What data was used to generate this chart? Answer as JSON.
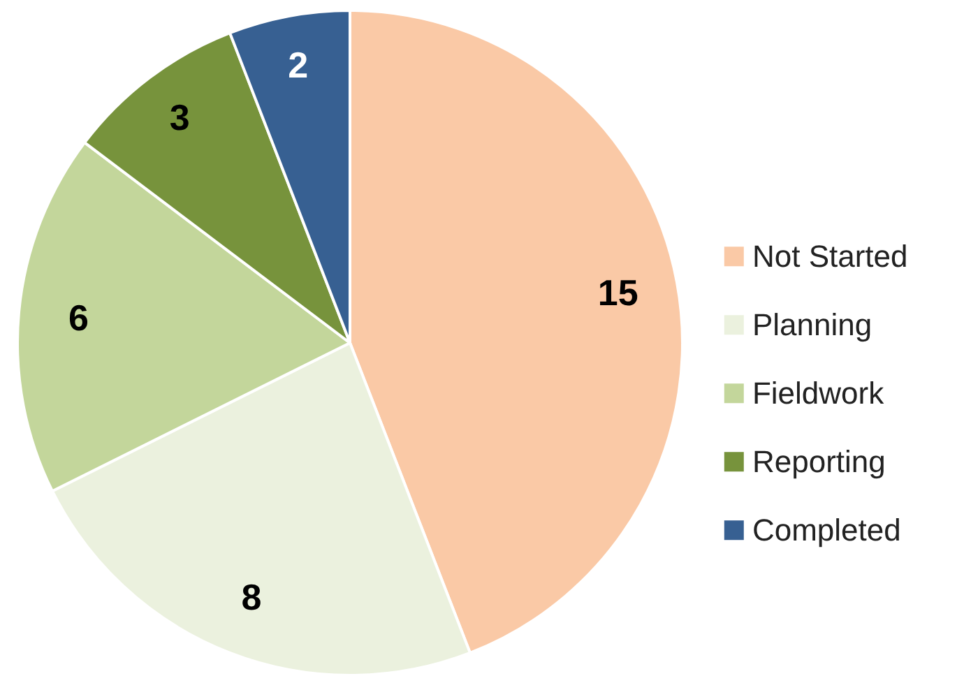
{
  "chart_data": {
    "type": "pie",
    "categories": [
      "Not Started",
      "Planning",
      "Fieldwork",
      "Reporting",
      "Completed"
    ],
    "values": [
      15,
      8,
      6,
      3,
      2
    ],
    "colors": [
      "#fac9a6",
      "#ebf1de",
      "#c3d69b",
      "#77933c",
      "#376092"
    ],
    "data_labels": true,
    "legend": "right"
  }
}
